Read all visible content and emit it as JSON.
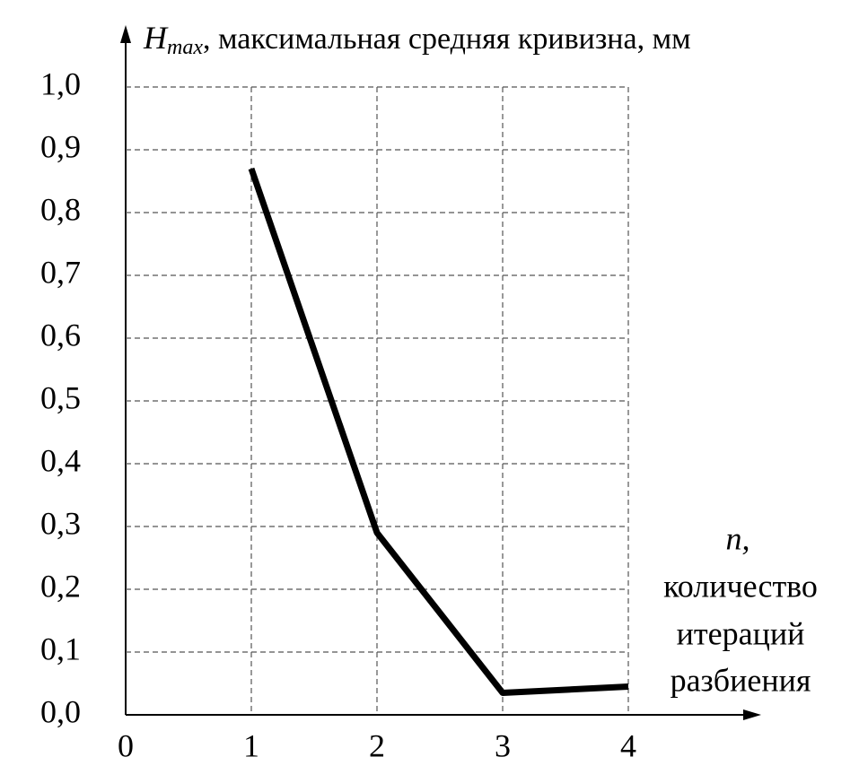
{
  "chart_data": {
    "type": "line",
    "ylabel": {
      "symbol": "H",
      "subscript": "max",
      "text": ", максимальная средняя кривизна, мм"
    },
    "xlabel": {
      "symbol": "n,",
      "lines": [
        "количество",
        "итераций",
        "разбиения"
      ]
    },
    "x": [
      1,
      2,
      3,
      4
    ],
    "series": [
      {
        "values": [
          0.87,
          0.29,
          0.035,
          0.045
        ],
        "color": "#000000"
      }
    ],
    "xlim": [
      0,
      4
    ],
    "xticks": [
      0,
      1,
      2,
      3,
      4
    ],
    "ylim": [
      0,
      1
    ],
    "yticks": [
      {
        "value": 0,
        "label": "0,0"
      },
      {
        "value": 0.1,
        "label": "0,1"
      },
      {
        "value": 0.2,
        "label": "0,2"
      },
      {
        "value": 0.3,
        "label": "0,3"
      },
      {
        "value": 0.4,
        "label": "0,4"
      },
      {
        "value": 0.5,
        "label": "0,5"
      },
      {
        "value": 0.6,
        "label": "0,6"
      },
      {
        "value": 0.7,
        "label": "0,7"
      },
      {
        "value": 0.8,
        "label": "0,8"
      },
      {
        "value": 0.9,
        "label": "0,9"
      },
      {
        "value": 1,
        "label": "1,0"
      }
    ],
    "grid": true
  }
}
